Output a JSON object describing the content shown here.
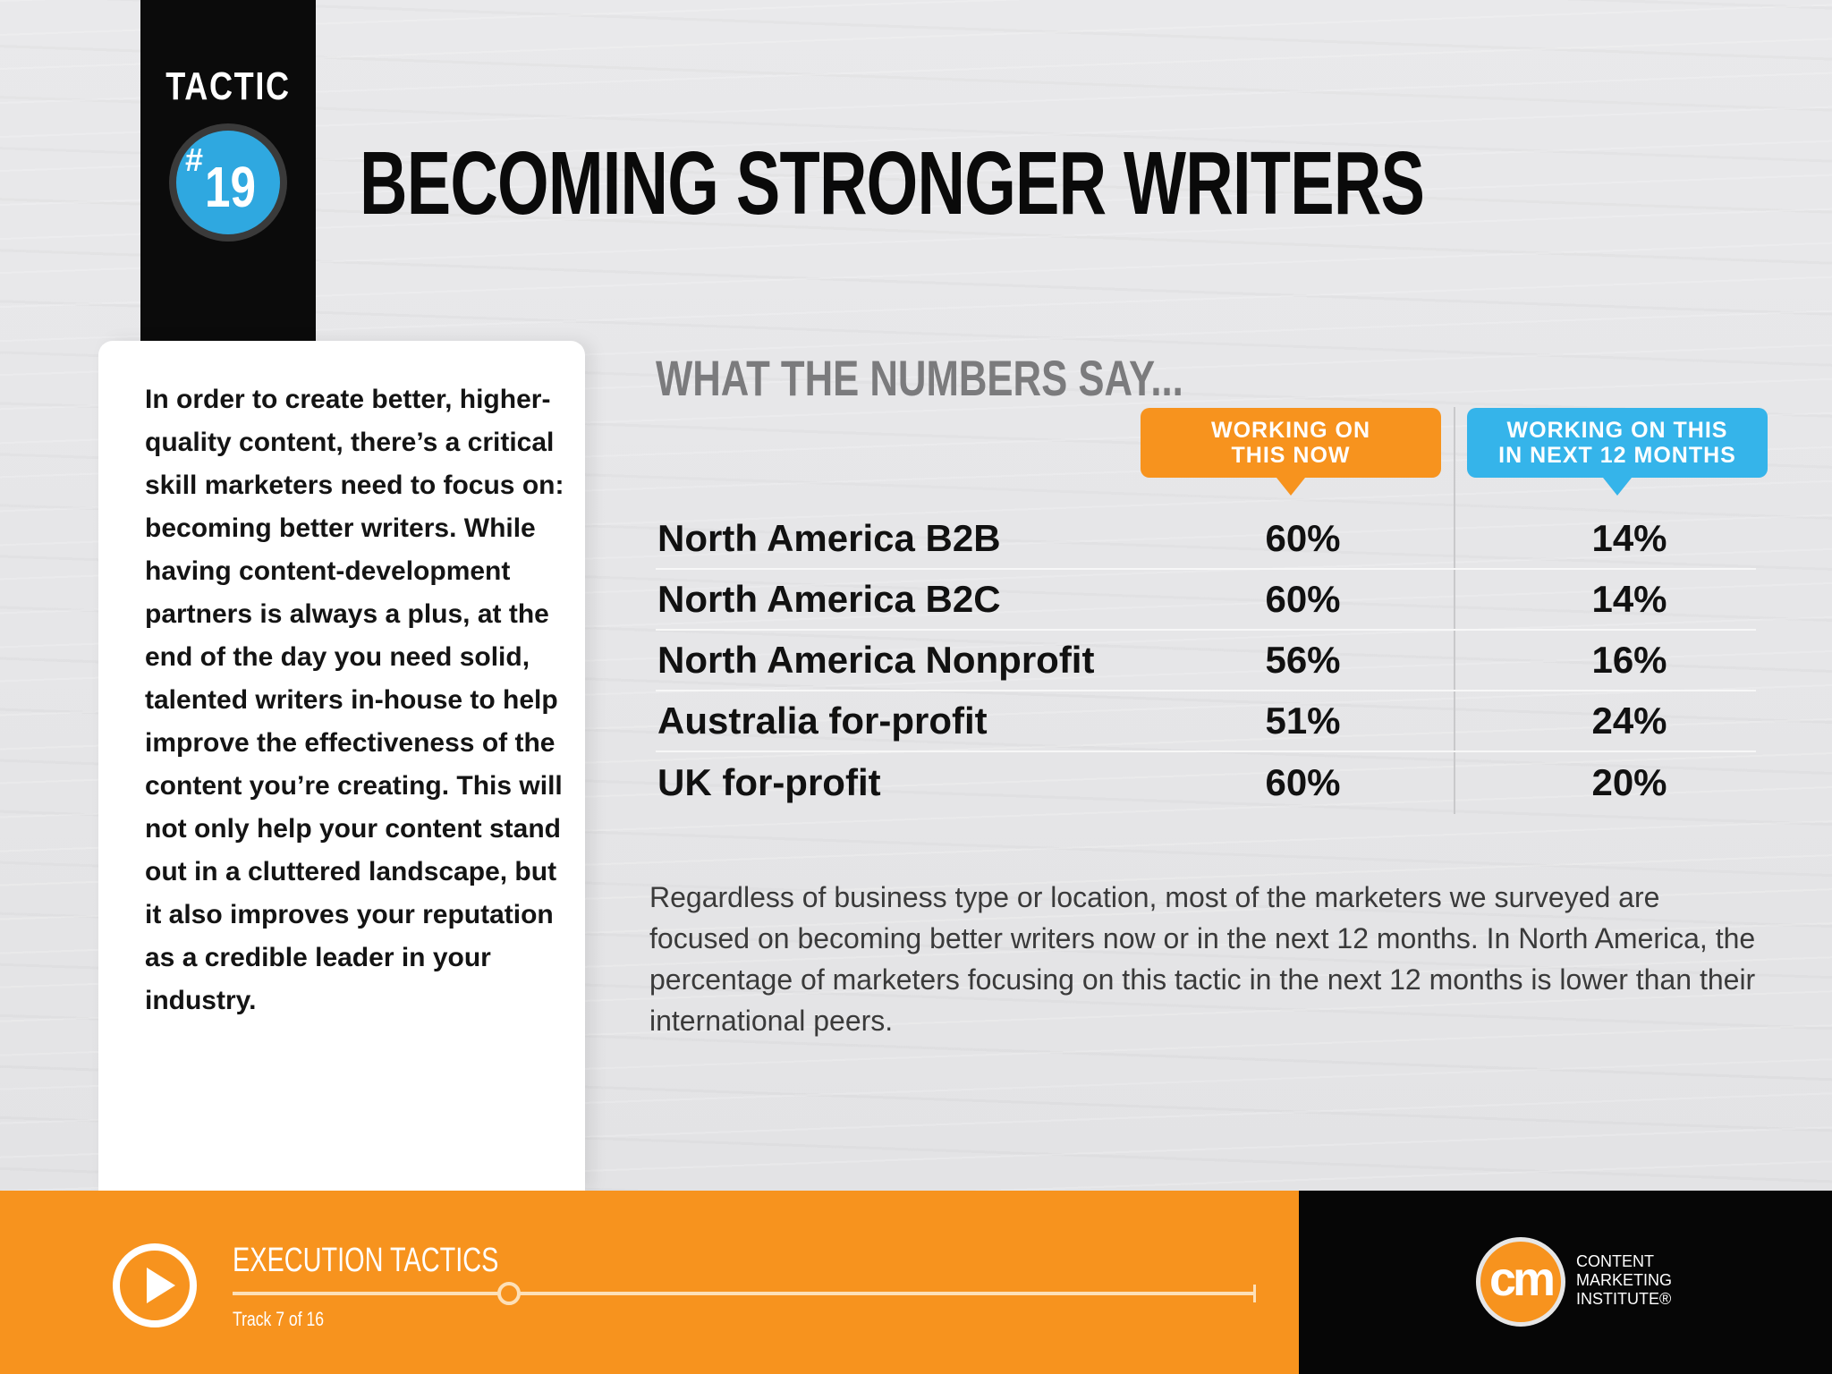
{
  "tactic": {
    "label": "TACTIC",
    "hash": "#",
    "number": "19"
  },
  "title": "BECOMING STRONGER WRITERS",
  "intro_text": "In order to create better, higher-quality content, there’s a critical skill marketers need to focus on: becoming better writers. While having content-development partners is always a plus, at the end of the day you need solid, talented writers in-house to help improve the effectiveness of the content you’re creating. This will not only help your content stand out in a cluttered landscape, but it also improves your reputation as a credible leader in your industry.",
  "numbers": {
    "heading": "WHAT THE NUMBERS SAY...",
    "columns": {
      "now_line1": "WORKING ON",
      "now_line2": "THIS NOW",
      "next_line1": "WORKING ON THIS",
      "next_line2": "IN NEXT 12 MONTHS"
    },
    "rows": [
      {
        "region": "North America B2B",
        "now": "60%",
        "next": "14%"
      },
      {
        "region": "North America B2C",
        "now": "60%",
        "next": "14%"
      },
      {
        "region": "North America Nonprofit",
        "now": "56%",
        "next": "16%"
      },
      {
        "region": "Australia for-profit",
        "now": "51%",
        "next": "24%"
      },
      {
        "region": "UK for-profit",
        "now": "60%",
        "next": "20%"
      }
    ]
  },
  "summary": "Regardless of business type or location, most of the marketers we surveyed are focused on becoming better writers now or in the next 12 months. In North America, the percentage of marketers focusing on this tactic in the next 12 months is lower than their international peers.",
  "footer": {
    "section": "EXECUTION TACTICS",
    "track": "Track 7 of 16",
    "progress": 0.27,
    "logo_mark": "cm",
    "logo_line1": "CONTENT",
    "logo_line2": "MARKETING",
    "logo_line3": "INSTITUTE®"
  },
  "colors": {
    "orange": "#f7931e",
    "blue": "#35b4ea",
    "black": "#0b0b0b"
  }
}
